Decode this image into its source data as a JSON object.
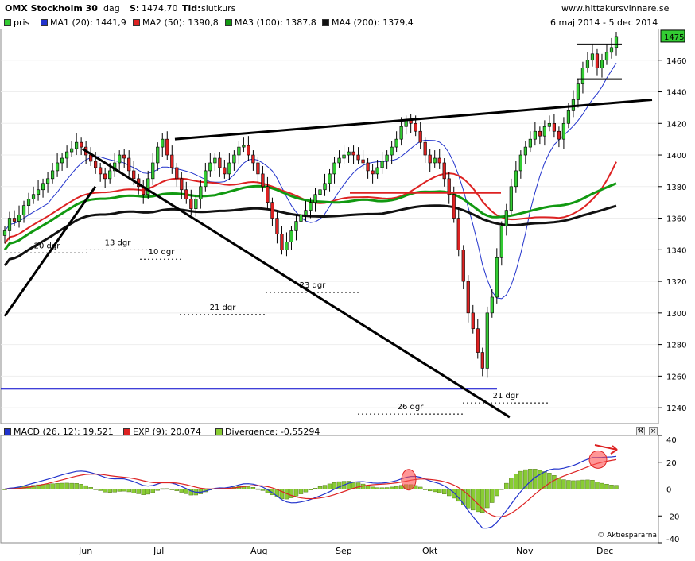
{
  "header": {
    "title": "OMX Stockholm 30",
    "sep": "-",
    "period": "dag",
    "s_label": "S:",
    "s_value": "1474,70",
    "tid_label": "Tid:",
    "tid_value": "slutkurs",
    "site": "www.hittakursvinnare.se",
    "date_range": "6 maj 2014 - 5 dec 2014"
  },
  "legend": [
    {
      "label": "pris",
      "color": "#33cc33"
    },
    {
      "label": "MA1 (20): 1441,9",
      "color": "#2233cc"
    },
    {
      "label": "MA2 (50): 1390,8",
      "color": "#dd2222"
    },
    {
      "label": "MA3 (100): 1387,8",
      "color": "#119911"
    },
    {
      "label": "MA4 (200): 1379,4",
      "color": "#111111"
    }
  ],
  "macd_legend": [
    {
      "label": "MACD (26, 12): 19,521",
      "color": "#2233cc"
    },
    {
      "label": "EXP (9): 20,074",
      "color": "#dd2222"
    },
    {
      "label": "Divergence: -0,55294",
      "color": "#88cc33"
    }
  ],
  "last_price_tag": "1475",
  "copyright": "© Aktiespararna",
  "chart_data": [
    {
      "type": "candlestick",
      "ylim": [
        1230,
        1480
      ],
      "yticks": [
        1240,
        1260,
        1280,
        1300,
        1320,
        1340,
        1360,
        1380,
        1400,
        1420,
        1440,
        1460
      ],
      "x_labels": [
        "Jun",
        "Jul",
        "Aug",
        "Sep",
        "Okt",
        "Nov",
        "Dec"
      ],
      "close": [
        1352,
        1360,
        1358,
        1362,
        1368,
        1372,
        1375,
        1378,
        1382,
        1385,
        1390,
        1395,
        1398,
        1402,
        1404,
        1408,
        1405,
        1400,
        1396,
        1392,
        1388,
        1385,
        1390,
        1395,
        1400,
        1398,
        1390,
        1385,
        1380,
        1375,
        1385,
        1395,
        1405,
        1410,
        1400,
        1392,
        1385,
        1378,
        1372,
        1366,
        1372,
        1380,
        1390,
        1395,
        1398,
        1392,
        1388,
        1395,
        1400,
        1405,
        1406,
        1400,
        1395,
        1388,
        1380,
        1370,
        1360,
        1350,
        1340,
        1345,
        1352,
        1358,
        1362,
        1365,
        1370,
        1375,
        1378,
        1382,
        1388,
        1395,
        1398,
        1400,
        1402,
        1400,
        1397,
        1395,
        1390,
        1388,
        1392,
        1396,
        1400,
        1405,
        1410,
        1418,
        1422,
        1420,
        1415,
        1408,
        1400,
        1395,
        1398,
        1395,
        1385,
        1375,
        1360,
        1340,
        1320,
        1300,
        1290,
        1275,
        1265,
        1300,
        1310,
        1335,
        1355,
        1365,
        1380,
        1390,
        1400,
        1405,
        1410,
        1415,
        1412,
        1418,
        1420,
        1415,
        1410,
        1420,
        1428,
        1435,
        1445,
        1455,
        1460,
        1464,
        1455,
        1460,
        1465,
        1468,
        1475
      ],
      "horizontal_lines": [
        {
          "y": 1252,
          "color": "#0000cc"
        },
        {
          "y": 1376,
          "color": "#dd2222"
        }
      ],
      "trend_lines": [
        {
          "from": [
            0.14,
            1410
          ],
          "to": [
            1.0,
            1435
          ]
        },
        {
          "from": [
            0.0,
            1298
          ],
          "to": [
            0.14,
            1380
          ]
        },
        {
          "from": [
            0.12,
            1404
          ],
          "to": [
            0.78,
            1234
          ]
        }
      ],
      "annotations": [
        "20 dgr",
        "13 dgr",
        "10 dgr",
        "21 dgr",
        "23 dgr",
        "26 dgr",
        "21 dgr"
      ]
    },
    {
      "type": "line",
      "title": "MACD",
      "ylim": [
        -40,
        40
      ],
      "yticks": [
        -40,
        -20,
        0,
        20,
        40
      ],
      "series": [
        {
          "name": "MACD (26, 12)",
          "color": "#2233cc"
        },
        {
          "name": "EXP (9)",
          "color": "#dd2222"
        },
        {
          "name": "Divergence",
          "color": "#88cc33"
        }
      ]
    }
  ]
}
